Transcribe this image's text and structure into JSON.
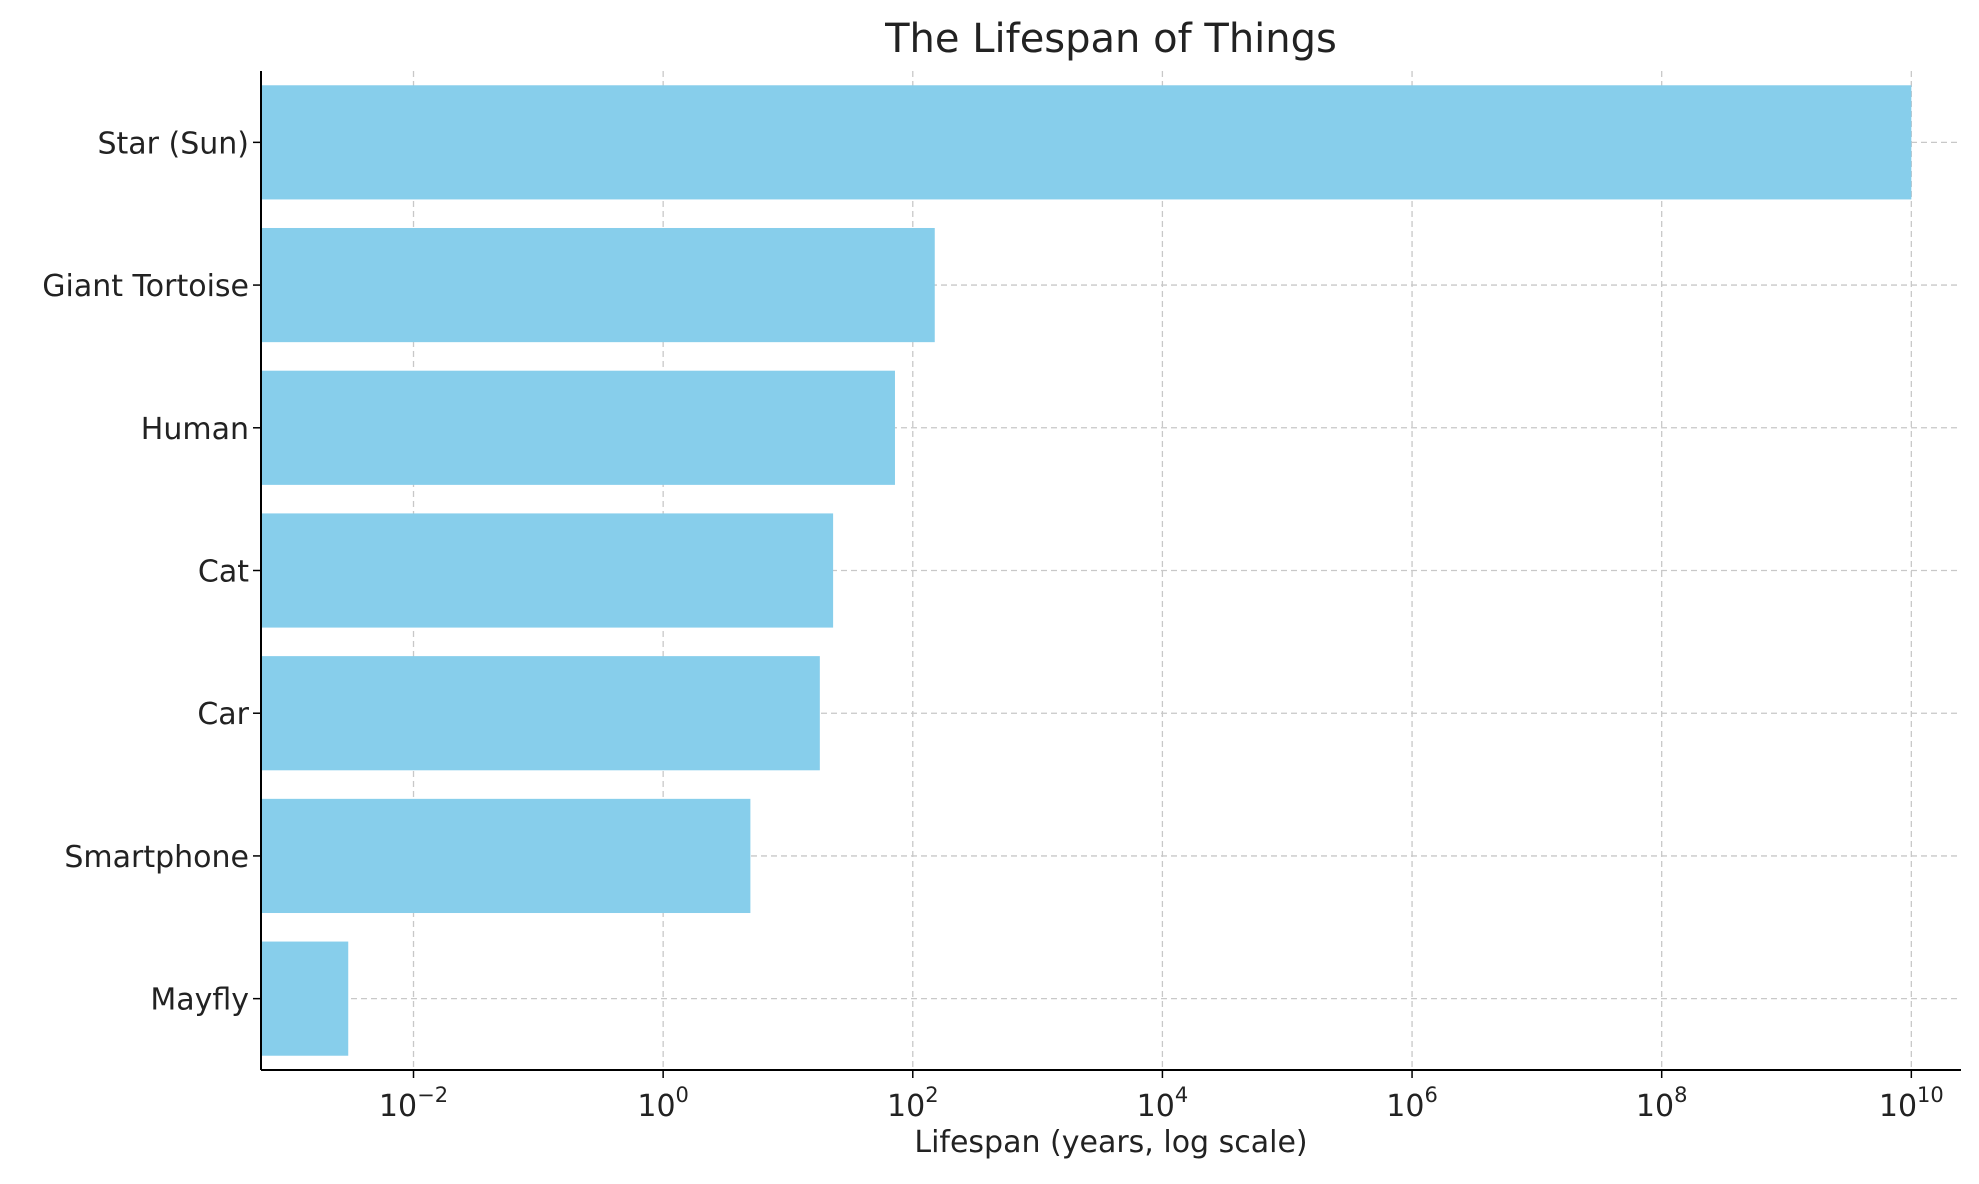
{
  "chart_data": {
    "type": "bar",
    "orientation": "horizontal",
    "title": "The Lifespan of Things",
    "xlabel": "Lifespan (years, log scale)",
    "ylabel": "",
    "x_scale": "log",
    "xlim": [
      0.0006,
      25000000000
    ],
    "x_ticks": [
      {
        "value": 0.01,
        "base": "10",
        "exp": "−2"
      },
      {
        "value": 1,
        "base": "10",
        "exp": "0"
      },
      {
        "value": 100,
        "base": "10",
        "exp": "2"
      },
      {
        "value": 10000,
        "base": "10",
        "exp": "4"
      },
      {
        "value": 1000000,
        "base": "10",
        "exp": "6"
      },
      {
        "value": 100000000,
        "base": "10",
        "exp": "8"
      },
      {
        "value": 10000000000,
        "base": "10",
        "exp": "10"
      }
    ],
    "categories": [
      "Mayfly",
      "Smartphone",
      "Car",
      "Cat",
      "Human",
      "Giant Tortoise",
      "Star (Sun)"
    ],
    "values": [
      0.003,
      5,
      18,
      23,
      72,
      150,
      10000000000
    ],
    "grid": true,
    "legend": "none",
    "colors": {
      "bar": "#87CEEB",
      "grid": "#c8c8c8",
      "axis": "#000000",
      "text": "#222222"
    }
  }
}
